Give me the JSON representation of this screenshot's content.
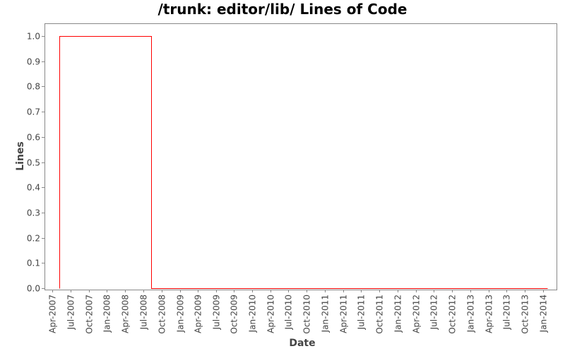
{
  "chart_data": {
    "type": "line",
    "title": "/trunk: editor/lib/ Lines of Code",
    "xlabel": "Date",
    "ylabel": "Lines",
    "xlim": [
      "2007-02-21",
      "2014-03-13"
    ],
    "ylim": [
      -0.005,
      1.05
    ],
    "grid": false,
    "line_shape": "step",
    "x_ticks": [
      "Apr-2007",
      "Jul-2007",
      "Oct-2007",
      "Jan-2008",
      "Apr-2008",
      "Jul-2008",
      "Oct-2008",
      "Jan-2009",
      "Apr-2009",
      "Jul-2009",
      "Oct-2009",
      "Jan-2010",
      "Apr-2010",
      "Jul-2010",
      "Oct-2010",
      "Jan-2011",
      "Apr-2011",
      "Jul-2011",
      "Oct-2011",
      "Jan-2012",
      "Apr-2012",
      "Jul-2012",
      "Oct-2012",
      "Jan-2013",
      "Apr-2013",
      "Jul-2013",
      "Oct-2013",
      "Jan-2014"
    ],
    "x_tick_dates": [
      "2007-04-01",
      "2007-07-01",
      "2007-10-01",
      "2008-01-01",
      "2008-04-01",
      "2008-07-01",
      "2008-10-01",
      "2009-01-01",
      "2009-04-01",
      "2009-07-01",
      "2009-10-01",
      "2010-01-01",
      "2010-04-01",
      "2010-07-01",
      "2010-10-01",
      "2011-01-01",
      "2011-04-01",
      "2011-07-01",
      "2011-10-01",
      "2012-01-01",
      "2012-04-01",
      "2012-07-01",
      "2012-10-01",
      "2013-01-01",
      "2013-04-01",
      "2013-07-01",
      "2013-10-01",
      "2014-01-01"
    ],
    "y_ticks": [
      "0.0",
      "0.1",
      "0.2",
      "0.3",
      "0.4",
      "0.5",
      "0.6",
      "0.7",
      "0.8",
      "0.9",
      "1.0"
    ],
    "series": [
      {
        "color": "#ff0000",
        "points": [
          {
            "x": "2007-05-06",
            "y": 0
          },
          {
            "x": "2007-05-06",
            "y": 1
          },
          {
            "x": "2008-08-10",
            "y": 1
          },
          {
            "x": "2008-08-10",
            "y": 0
          },
          {
            "x": "2014-01-22",
            "y": 0
          }
        ]
      }
    ]
  }
}
